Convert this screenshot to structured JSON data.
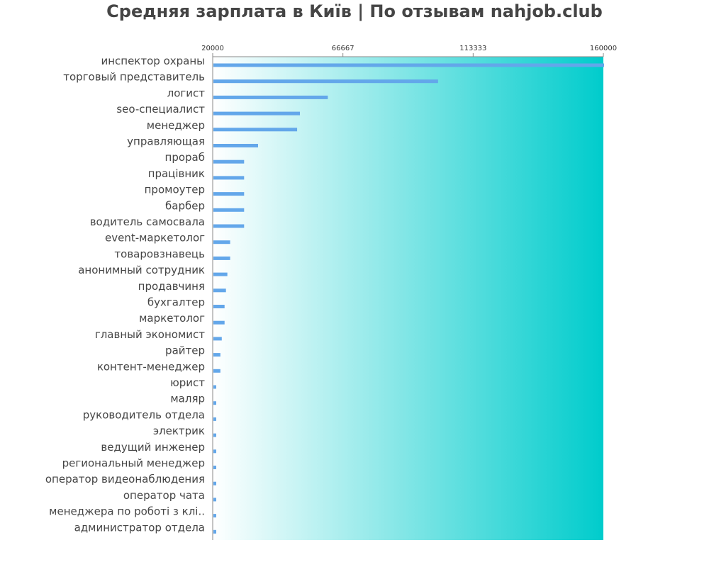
{
  "chart_data": {
    "type": "bar",
    "orientation": "horizontal",
    "title": "Средняя зарплата в Київ | По отзывам nahjob.club",
    "xlim": [
      20000,
      160000
    ],
    "x_ticks": [
      "20000",
      "66667",
      "113333",
      "160000"
    ],
    "x_tick_values": [
      20000,
      66667,
      113333,
      160000
    ],
    "tick_position": "top",
    "grid": false,
    "bar_color": "#63a7ea",
    "background_gradient": [
      "#ffffff",
      "#00cccc"
    ],
    "categories": [
      "инспектор охраны",
      "торговый представитель",
      "логист",
      "seo-специалист",
      "менеджер",
      "управляющая",
      "прораб",
      "працівник",
      "промоутер",
      "барбер",
      "водитель самосвала",
      "event-маркетолог",
      "товаровзнавець",
      "анонимный сотрудник",
      "продавчиня",
      "бухгалтер",
      "маркетолог",
      "главный экономист",
      "райтер",
      "контент-менеджер",
      "юрист",
      "маляр",
      "руководитель отдела",
      "электрик",
      "ведущий инженер",
      "региональный менеджер",
      "оператор видеонаблюдения",
      "оператор чата",
      "менеджера по роботі з клі..",
      "администратор отдела"
    ],
    "values": [
      160000,
      100500,
      61000,
      51000,
      50000,
      36000,
      31000,
      31000,
      31000,
      31000,
      31000,
      26000,
      26000,
      25000,
      24500,
      24000,
      24000,
      23000,
      22500,
      22500,
      21000,
      21000,
      21000,
      21000,
      21000,
      21000,
      21000,
      21000,
      21000,
      21000
    ]
  }
}
